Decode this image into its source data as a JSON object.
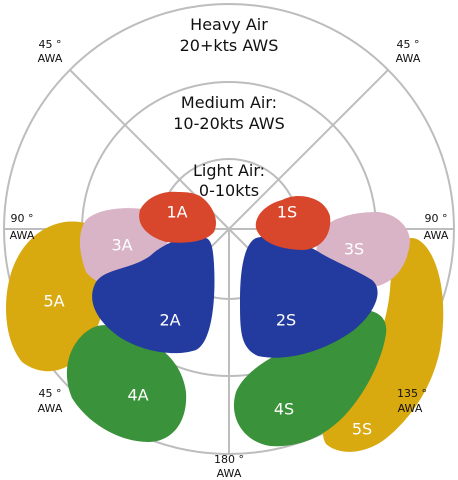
{
  "rings": {
    "heavy": {
      "line1": "Heavy Air",
      "line2": "20+kts AWS"
    },
    "medium": {
      "line1": "Medium Air:",
      "line2": "10-20kts AWS"
    },
    "light": {
      "line1": "Light Air:",
      "line2": "0-10kts"
    }
  },
  "angles": {
    "tl45": {
      "line1": "45 °",
      "line2": "AWA"
    },
    "tr45": {
      "line1": "45 °",
      "line2": "AWA"
    },
    "l90": {
      "line1": "90 °",
      "line2": "AWA"
    },
    "r90": {
      "line1": "90 °",
      "line2": "AWA"
    },
    "bl45": {
      "line1": "45 °",
      "line2": "AWA"
    },
    "br135": {
      "line1": "135 °",
      "line2": "AWA"
    },
    "b180": {
      "line1": "180 °",
      "line2": "AWA"
    }
  },
  "sails": {
    "s1A": "1A",
    "s1S": "1S",
    "s2A": "2A",
    "s2S": "2S",
    "s3A": "3A",
    "s3S": "3S",
    "s4A": "4A",
    "s4S": "4S",
    "s5A": "5A",
    "s5S": "5S"
  },
  "colors": {
    "red": "#d8462b",
    "pink": "#d9b3c6",
    "blue": "#233a9f",
    "green": "#3a923a",
    "yellow": "#d9a910",
    "ring": "#bdbdbd"
  }
}
